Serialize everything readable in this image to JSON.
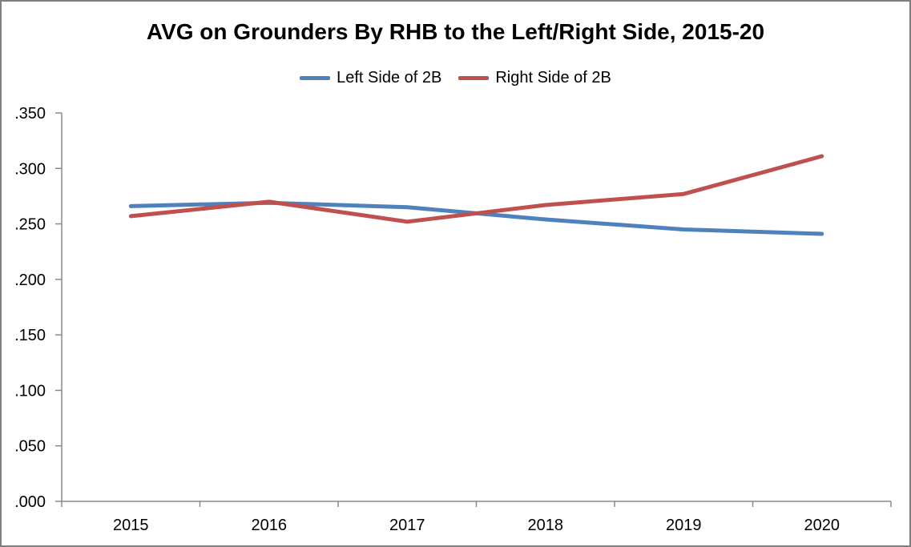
{
  "chart": {
    "title": "AVG on Grounders By RHB to the Left/Right Side, 2015-20"
  },
  "chart_data": {
    "type": "line",
    "title": "AVG on Grounders By RHB to the Left/Right Side, 2015-20",
    "categories": [
      "2015",
      "2016",
      "2017",
      "2018",
      "2019",
      "2020"
    ],
    "series": [
      {
        "name": "Left Side of 2B",
        "color": "#4F81BD",
        "values": [
          0.266,
          0.269,
          0.265,
          0.254,
          0.245,
          0.241
        ]
      },
      {
        "name": "Right Side of 2B",
        "color": "#C0504D",
        "values": [
          0.257,
          0.27,
          0.252,
          0.267,
          0.277,
          0.311
        ]
      }
    ],
    "xlabel": "",
    "ylabel": "",
    "ylim": [
      0,
      0.35
    ],
    "ytick_step": 0.05,
    "ytick_labels": [
      ".000",
      ".050",
      ".100",
      ".150",
      ".200",
      ".250",
      ".300",
      ".350"
    ],
    "grid": false,
    "legend_position": "top",
    "axis_color": "#898989",
    "text_color": "#000000",
    "frame_border_color": "#7F7F7F",
    "background_color": "#FFFFFF"
  }
}
